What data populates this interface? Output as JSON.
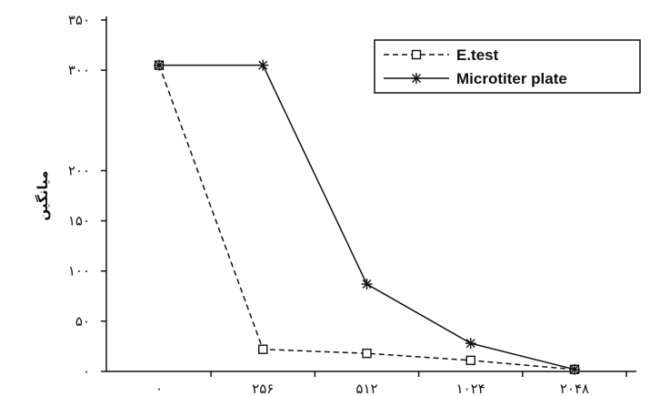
{
  "chart_data": {
    "type": "line",
    "title": "",
    "xlabel": "",
    "ylabel": "میانگین",
    "ylim": [
      0,
      350
    ],
    "y_ticks": [
      {
        "value": 0,
        "label": "۰"
      },
      {
        "value": 50,
        "label": "۵۰"
      },
      {
        "value": 100,
        "label": "۱۰۰"
      },
      {
        "value": 150,
        "label": "۱۵۰"
      },
      {
        "value": 200,
        "label": "۲۰۰"
      },
      {
        "value": 300,
        "label": "۳۰۰"
      },
      {
        "value": 350,
        "label": "۳۵۰"
      }
    ],
    "categories": [
      "۰",
      "۲۵۶",
      "۵۱۲",
      "۱۰۲۴",
      "۲۰۴۸"
    ],
    "grid": false,
    "legend_position": "top-right",
    "series": [
      {
        "name": "E.test",
        "style": "dashed",
        "marker": "square",
        "color": "#111111",
        "values": [
          305,
          22,
          18,
          11,
          2
        ]
      },
      {
        "name": "Microtiter plate",
        "style": "solid",
        "marker": "star",
        "color": "#111111",
        "values": [
          305,
          305,
          87,
          28,
          2
        ]
      }
    ]
  }
}
